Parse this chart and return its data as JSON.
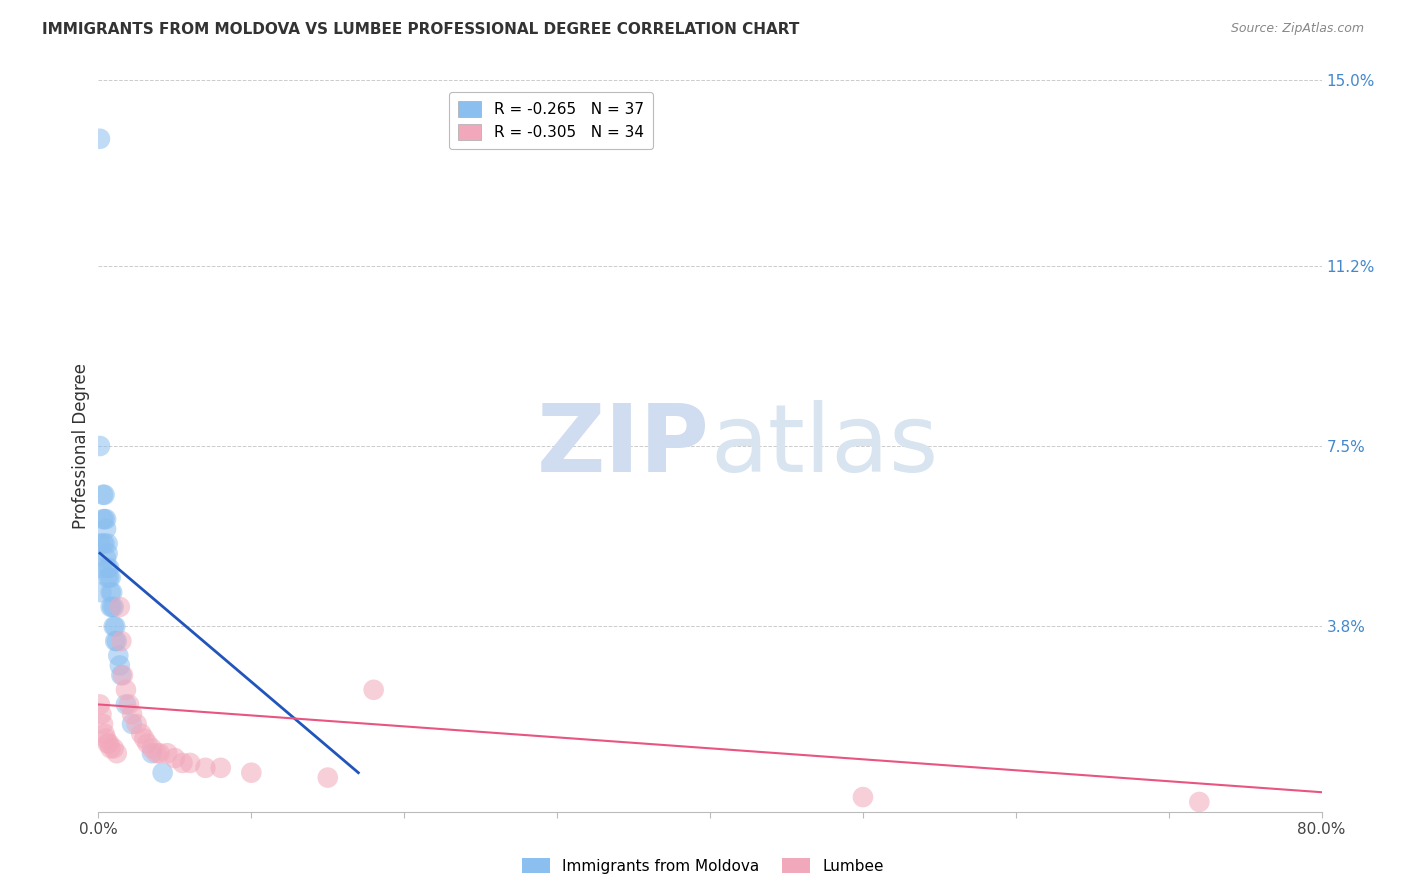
{
  "title": "IMMIGRANTS FROM MOLDOVA VS LUMBEE PROFESSIONAL DEGREE CORRELATION CHART",
  "source": "Source: ZipAtlas.com",
  "ylabel_label": "Professional Degree",
  "x_min": 0.0,
  "x_max": 0.8,
  "y_min": 0.0,
  "y_max": 0.15,
  "y_tick_labels_right": [
    "15.0%",
    "11.2%",
    "7.5%",
    "3.8%"
  ],
  "y_tick_values_right": [
    0.15,
    0.112,
    0.075,
    0.038
  ],
  "legend_entry1_label": "R = -0.265   N = 37",
  "legend_entry2_label": "R = -0.305   N = 34",
  "color_blue": "#8BBFEF",
  "color_pink": "#F2A8BB",
  "color_blue_line": "#2255BB",
  "color_pink_line": "#E85580",
  "legend_label1": "Immigrants from Moldova",
  "legend_label2": "Lumbee",
  "watermark_zip": "ZIP",
  "watermark_atlas": "atlas",
  "moldova_x": [
    0.001,
    0.001,
    0.002,
    0.002,
    0.003,
    0.003,
    0.003,
    0.004,
    0.004,
    0.004,
    0.005,
    0.005,
    0.005,
    0.006,
    0.006,
    0.006,
    0.006,
    0.007,
    0.007,
    0.008,
    0.008,
    0.008,
    0.009,
    0.009,
    0.01,
    0.01,
    0.011,
    0.011,
    0.012,
    0.013,
    0.014,
    0.015,
    0.018,
    0.022,
    0.035,
    0.042,
    0.001
  ],
  "moldova_y": [
    0.138,
    0.055,
    0.05,
    0.045,
    0.065,
    0.06,
    0.055,
    0.065,
    0.06,
    0.055,
    0.06,
    0.058,
    0.052,
    0.055,
    0.053,
    0.05,
    0.048,
    0.05,
    0.048,
    0.048,
    0.045,
    0.042,
    0.045,
    0.042,
    0.042,
    0.038,
    0.038,
    0.035,
    0.035,
    0.032,
    0.03,
    0.028,
    0.022,
    0.018,
    0.012,
    0.008,
    0.075
  ],
  "lumbee_x": [
    0.001,
    0.002,
    0.003,
    0.004,
    0.005,
    0.006,
    0.007,
    0.008,
    0.01,
    0.012,
    0.014,
    0.015,
    0.016,
    0.018,
    0.02,
    0.022,
    0.025,
    0.028,
    0.03,
    0.032,
    0.035,
    0.038,
    0.04,
    0.045,
    0.05,
    0.055,
    0.06,
    0.07,
    0.08,
    0.1,
    0.15,
    0.18,
    0.5,
    0.72
  ],
  "lumbee_y": [
    0.022,
    0.02,
    0.018,
    0.016,
    0.015,
    0.014,
    0.014,
    0.013,
    0.013,
    0.012,
    0.042,
    0.035,
    0.028,
    0.025,
    0.022,
    0.02,
    0.018,
    0.016,
    0.015,
    0.014,
    0.013,
    0.012,
    0.012,
    0.012,
    0.011,
    0.01,
    0.01,
    0.009,
    0.009,
    0.008,
    0.007,
    0.025,
    0.003,
    0.002
  ],
  "blue_line_x": [
    0.001,
    0.17
  ],
  "blue_line_y": [
    0.053,
    0.008
  ],
  "pink_line_x": [
    0.0,
    0.8
  ],
  "pink_line_y": [
    0.022,
    0.004
  ],
  "background_color": "#FFFFFF",
  "grid_color": "#CCCCCC"
}
